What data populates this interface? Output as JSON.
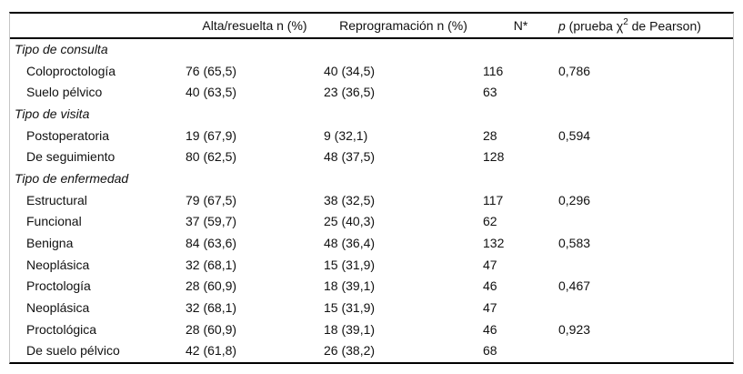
{
  "table": {
    "header": {
      "col_label": "",
      "col_alta": "Alta/resuelta n (%)",
      "col_reprog": "Reprogramación n (%)",
      "col_n": "N*",
      "col_p": {
        "p_symbol": "p",
        "pre_sup": " (prueba χ",
        "sup": "2",
        "post_sup": " de Pearson)"
      }
    },
    "rows": [
      {
        "type": "group",
        "label": "Tipo de consulta",
        "alta": "",
        "reprog": "",
        "n": "",
        "p": ""
      },
      {
        "type": "data",
        "label": "Coloproctología",
        "alta": "76 (65,5)",
        "reprog": "40 (34,5)",
        "n": "116",
        "p": "0,786"
      },
      {
        "type": "data",
        "label": "Suelo pélvico",
        "alta": "40 (63,5)",
        "reprog": "23 (36,5)",
        "n": "63",
        "p": ""
      },
      {
        "type": "group",
        "label": "Tipo de visita",
        "alta": "",
        "reprog": "",
        "n": "",
        "p": ""
      },
      {
        "type": "data",
        "label": "Postoperatoria",
        "alta": "19 (67,9)",
        "reprog": "9 (32,1)",
        "n": "28",
        "p": "0,594"
      },
      {
        "type": "data",
        "label": "De seguimiento",
        "alta": "80 (62,5)",
        "reprog": "48 (37,5)",
        "n": "128",
        "p": ""
      },
      {
        "type": "group",
        "label": "Tipo de enfermedad",
        "alta": "",
        "reprog": "",
        "n": "",
        "p": ""
      },
      {
        "type": "data",
        "label": "Estructural",
        "alta": "79 (67,5)",
        "reprog": "38 (32,5)",
        "n": "117",
        "p": "0,296"
      },
      {
        "type": "data",
        "label": "Funcional",
        "alta": "37 (59,7)",
        "reprog": "25 (40,3)",
        "n": "62",
        "p": ""
      },
      {
        "type": "data",
        "label": "Benigna",
        "alta": "84 (63,6)",
        "reprog": "48 (36,4)",
        "n": "132",
        "p": "0,583"
      },
      {
        "type": "data",
        "label": "Neoplásica",
        "alta": "32 (68,1)",
        "reprog": "15 (31,9)",
        "n": "47",
        "p": ""
      },
      {
        "type": "data",
        "label": "Proctología",
        "alta": "28 (60,9)",
        "reprog": "18 (39,1)",
        "n": "46",
        "p": "0,467"
      },
      {
        "type": "data",
        "label": "Neoplásica",
        "alta": "32 (68,1)",
        "reprog": "15 (31,9)",
        "n": "47",
        "p": ""
      },
      {
        "type": "data",
        "label": "Proctológica",
        "alta": "28 (60,9)",
        "reprog": "18 (39,1)",
        "n": "46",
        "p": "0,923"
      },
      {
        "type": "data",
        "label": "De suelo pélvico",
        "alta": "42 (61,8)",
        "reprog": "26 (38,2)",
        "n": "68",
        "p": ""
      }
    ]
  },
  "colors": {
    "rule": "#000000",
    "frame_border": "#c6c6c6",
    "text": "#111111",
    "background": "#ffffff"
  }
}
